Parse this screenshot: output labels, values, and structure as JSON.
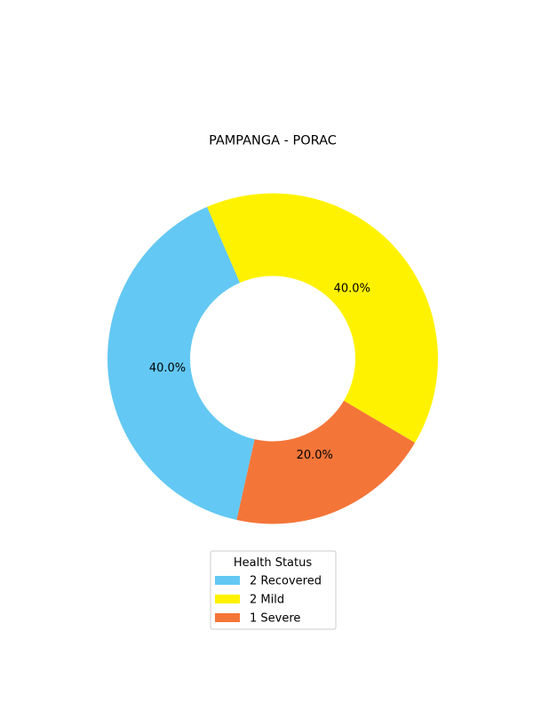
{
  "chart_data": {
    "type": "pie",
    "title": "PAMPANGA - PORAC",
    "donut": true,
    "categories": [
      "Recovered",
      "Mild",
      "Severe"
    ],
    "values": [
      2,
      2,
      1
    ],
    "percent_labels": [
      "40.0%",
      "40.0%",
      "20.0%"
    ],
    "colors": [
      "#63c8f3",
      "#fff200",
      "#f47538"
    ],
    "legend": {
      "title": "Health Status",
      "placement": "bottom-center",
      "entries": [
        "2  Recovered",
        "2  Mild",
        "1  Severe"
      ]
    }
  }
}
